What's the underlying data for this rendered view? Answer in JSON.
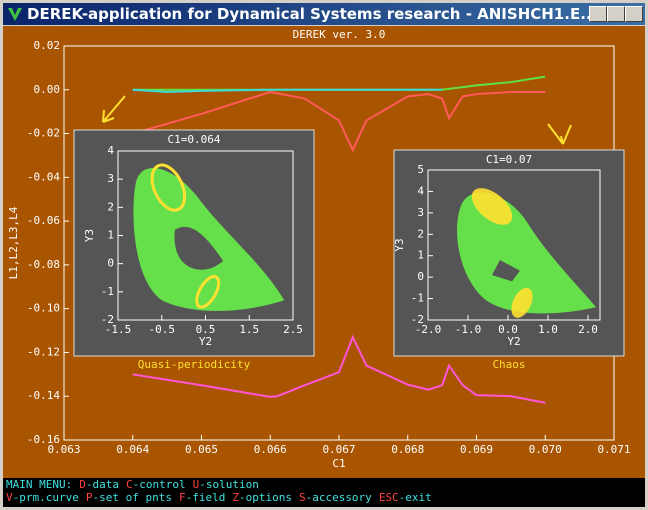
{
  "window_title": "DEREK-application for Dynamical Systems research - ANISHCH1.E...",
  "chart_data": [
    {
      "type": "line",
      "title": "DEREK ver. 3.0",
      "x_label": "C1",
      "y_label": "L1,L2,L3,L4",
      "xlim": [
        0.063,
        0.071
      ],
      "xticks": [
        0.063,
        0.064,
        0.065,
        0.066,
        0.067,
        0.068,
        0.069,
        {
          "value": 0.07,
          "label": "0.070"
        },
        0.071
      ],
      "ylim": [
        -0.16,
        0.02
      ],
      "yticks": [
        0.02,
        {
          "value": 0,
          "label": "0.00"
        },
        -0.02,
        -0.04,
        -0.06,
        -0.08,
        {
          "value": -0.1,
          "label": "-0.10"
        },
        -0.12,
        -0.14,
        -0.16
      ],
      "series": [
        {
          "color": "#ff5a5a",
          "x": [
            0.064,
            0.065,
            0.066,
            0.0665,
            0.067,
            0.0672,
            0.0674,
            0.068,
            0.0683,
            0.0685,
            0.0686,
            0.0688,
            0.069,
            0.0695,
            0.07
          ],
          "values": [
            -0.02,
            -0.011,
            -0.001,
            -0.004,
            -0.014,
            -0.0275,
            -0.014,
            -0.003,
            -0.002,
            -0.004,
            -0.013,
            -0.003,
            -0.002,
            -0.001,
            -0.001
          ]
        },
        {
          "color": "#ff55d5",
          "x": [
            0.064,
            0.065,
            0.066,
            0.0661,
            0.0665,
            0.067,
            0.0672,
            0.0674,
            0.068,
            0.0683,
            0.0685,
            0.0686,
            0.0688,
            0.069,
            0.0695,
            0.07
          ],
          "values": [
            -0.13,
            -0.135,
            -0.1403,
            -0.14,
            -0.135,
            -0.129,
            -0.113,
            -0.126,
            -0.1347,
            -0.137,
            -0.135,
            -0.126,
            -0.135,
            -0.1395,
            -0.14,
            -0.143
          ]
        },
        {
          "color": "#60e040",
          "x": [
            0.064,
            0.065,
            0.066,
            0.067,
            0.068,
            0.0685,
            0.069,
            0.0695,
            0.07
          ],
          "values": [
            0,
            0,
            0,
            0,
            0,
            0,
            0.002,
            0.0035,
            0.006
          ]
        },
        {
          "color": "#40d8d8",
          "x": [
            0.064,
            0.0645,
            0.065,
            0.066,
            0.067,
            0.068,
            0.0685
          ],
          "values": [
            0,
            -0.001,
            -0.0005,
            0,
            0,
            0,
            0
          ]
        }
      ]
    },
    {
      "type": "scatter",
      "title": "C1=0.064",
      "x_label": "Y2",
      "y_label": "Y3",
      "caption": "Quasi-periodicity",
      "xlim": [
        -1.5,
        2.5
      ],
      "xticks": [
        -1.5,
        -0.5,
        0.5,
        1.5,
        2.5
      ],
      "ylim": [
        -2,
        4
      ],
      "yticks": [
        -2,
        -1,
        0,
        1,
        2,
        3,
        4
      ]
    },
    {
      "type": "scatter",
      "title": "C1=0.07",
      "x_label": "Y2",
      "y_label": "Y3",
      "caption": "Chaos",
      "xlim": [
        -2,
        2.3
      ],
      "xticks": [
        {
          "value": -2,
          "label": "-2.0"
        },
        {
          "value": -1,
          "label": "-1.0"
        },
        {
          "value": 0,
          "label": "0.0"
        },
        {
          "value": 1,
          "label": "1.0"
        },
        {
          "value": 2,
          "label": "2.0"
        }
      ],
      "ylim": [
        -2,
        5
      ],
      "yticks": [
        -2,
        -1,
        0,
        1,
        2,
        3,
        4,
        5
      ]
    }
  ],
  "menu": {
    "line1": {
      "label": "MAIN MENU:",
      "items": [
        {
          "key": "D",
          "text": "-data"
        },
        {
          "key": "C",
          "text": "-control"
        },
        {
          "key": "U",
          "text": "-solution"
        }
      ]
    },
    "line2": {
      "items": [
        {
          "key": "V",
          "text": "-prm.curve"
        },
        {
          "key": "P",
          "text": "-set of pnts"
        },
        {
          "key": "F",
          "text": "-field"
        },
        {
          "key": "Z",
          "text": "-options"
        },
        {
          "key": "S",
          "text": "-accessory"
        },
        {
          "key": "ESC",
          "text": "-exit"
        }
      ]
    }
  }
}
